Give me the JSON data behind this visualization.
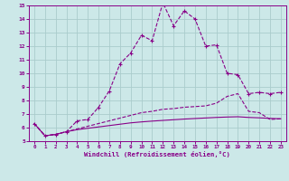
{
  "x": [
    0,
    1,
    2,
    3,
    4,
    5,
    6,
    7,
    8,
    9,
    10,
    11,
    12,
    13,
    14,
    15,
    16,
    17,
    18,
    19,
    20,
    21,
    22,
    23
  ],
  "line1": [
    6.3,
    5.4,
    5.5,
    5.7,
    6.5,
    6.6,
    7.5,
    8.7,
    10.7,
    11.5,
    12.8,
    12.4,
    15.2,
    13.5,
    14.6,
    14.0,
    12.0,
    12.1,
    10.0,
    9.9,
    8.5,
    8.6,
    8.5,
    8.6
  ],
  "line2": [
    6.3,
    5.4,
    5.5,
    5.7,
    5.9,
    6.1,
    6.3,
    6.5,
    6.7,
    6.9,
    7.1,
    7.2,
    7.35,
    7.4,
    7.5,
    7.55,
    7.6,
    7.8,
    8.3,
    8.5,
    7.2,
    7.1,
    6.6,
    6.65
  ],
  "line3": [
    6.3,
    5.4,
    5.5,
    5.7,
    5.85,
    5.95,
    6.05,
    6.15,
    6.25,
    6.35,
    6.42,
    6.48,
    6.53,
    6.58,
    6.63,
    6.67,
    6.71,
    6.75,
    6.78,
    6.8,
    6.75,
    6.72,
    6.68,
    6.65
  ],
  "xlabel": "Windchill (Refroidissement éolien,°C)",
  "bg_color": "#cce8e8",
  "line_color": "#880088",
  "grid_color": "#aacccc",
  "xlim": [
    -0.5,
    23.5
  ],
  "ylim": [
    5,
    15
  ],
  "xticks": [
    0,
    1,
    2,
    3,
    4,
    5,
    6,
    7,
    8,
    9,
    10,
    11,
    12,
    13,
    14,
    15,
    16,
    17,
    18,
    19,
    20,
    21,
    22,
    23
  ],
  "yticks": [
    5,
    6,
    7,
    8,
    9,
    10,
    11,
    12,
    13,
    14,
    15
  ]
}
